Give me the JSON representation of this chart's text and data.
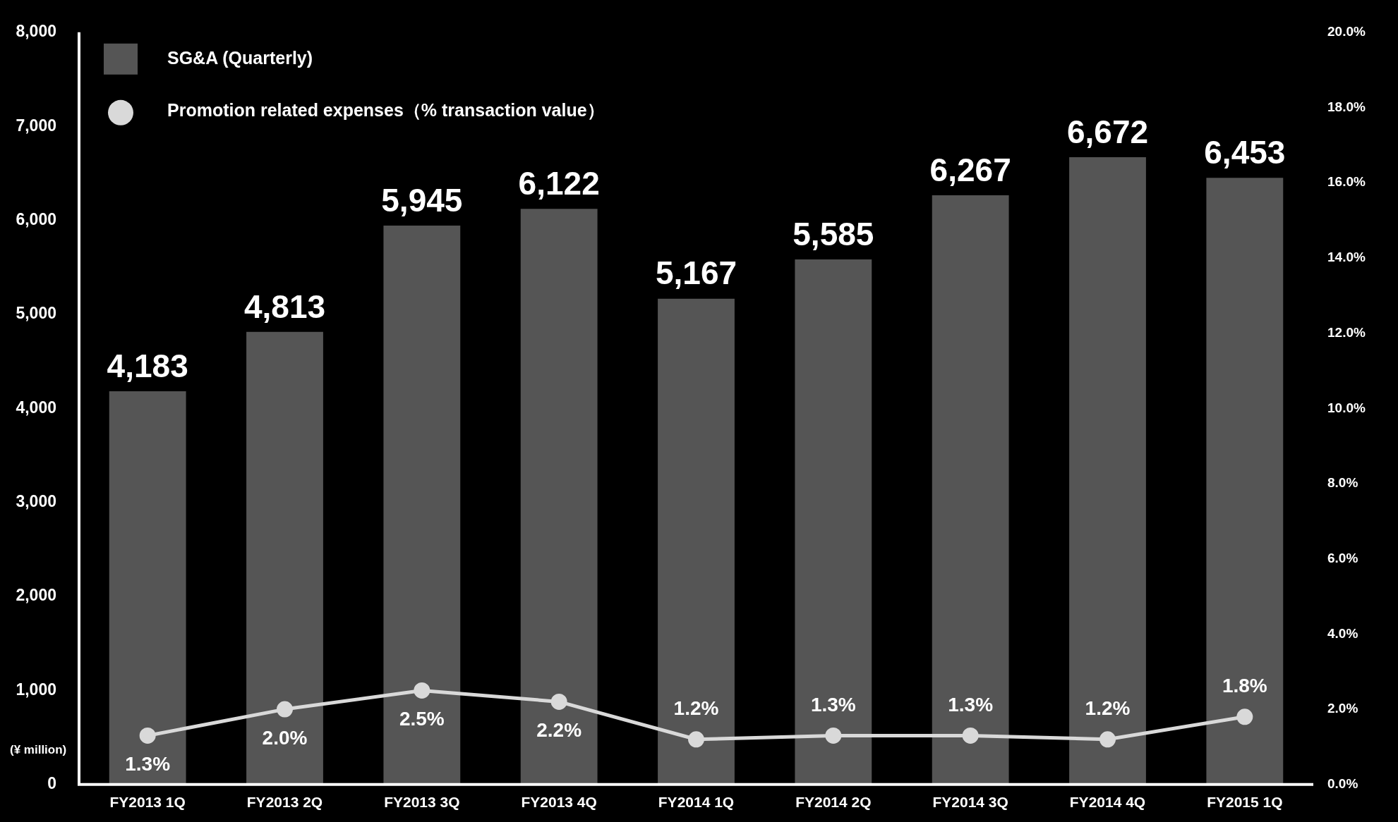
{
  "chart_data": {
    "type": "bar",
    "categories": [
      "FY2013 1Q",
      "FY2013 2Q",
      "FY2013 3Q",
      "FY2013 4Q",
      "FY2014 1Q",
      "FY2014 2Q",
      "FY2014 3Q",
      "FY2014 4Q",
      "FY2015 1Q"
    ],
    "series": [
      {
        "name": "SG&A (Quarterly)",
        "color": "#555555",
        "values": [
          4183,
          4813,
          5945,
          6122,
          5167,
          5585,
          6267,
          6672,
          6453
        ],
        "value_labels": [
          "4,183",
          "4,813",
          "5,945",
          "6,122",
          "5,167",
          "5,585",
          "6,267",
          "6,672",
          "6,453"
        ]
      },
      {
        "name": "Promotion related expenses（% transaction value）",
        "type": "line",
        "axis": "y2",
        "color": "#d9d9d9",
        "marker": "circle",
        "values": [
          1.3,
          2.0,
          2.5,
          2.2,
          1.2,
          1.3,
          1.3,
          1.2,
          1.8
        ],
        "value_labels": [
          "1.3%",
          "2.0%",
          "2.5%",
          "2.2%",
          "1.2%",
          "1.3%",
          "1.3%",
          "1.2%",
          "1.8%"
        ]
      }
    ],
    "ylim": [
      0,
      8000
    ],
    "yticks": [
      0,
      {
        "value": 1000,
        "label": "1,000"
      },
      {
        "value": 2000,
        "label": "2,000"
      },
      {
        "value": 3000,
        "label": "3,000"
      },
      {
        "value": 4000,
        "label": "4,000"
      },
      {
        "value": 5000,
        "label": "5,000"
      },
      {
        "value": 6000,
        "label": "6,000"
      },
      {
        "value": 7000,
        "label": "7,000"
      },
      {
        "value": 8000,
        "label": "8,000"
      }
    ],
    "y2lim": [
      0,
      20
    ],
    "y2ticks": [
      {
        "value": 0,
        "label": "0.0%"
      },
      {
        "value": 2,
        "label": "2.0%"
      },
      {
        "value": 4,
        "label": "4.0%"
      },
      {
        "value": 6,
        "label": "6.0%"
      },
      {
        "value": 8,
        "label": "8.0%"
      },
      {
        "value": 10,
        "label": "10.0%"
      },
      {
        "value": 12,
        "label": "12.0%"
      },
      {
        "value": 14,
        "label": "14.0%"
      },
      {
        "value": 16,
        "label": "16.0%"
      },
      {
        "value": 18,
        "label": "18.0%"
      },
      {
        "value": 20,
        "label": "20.0%"
      }
    ],
    "annotations": [
      "(¥ million)"
    ],
    "legend": "top left"
  }
}
